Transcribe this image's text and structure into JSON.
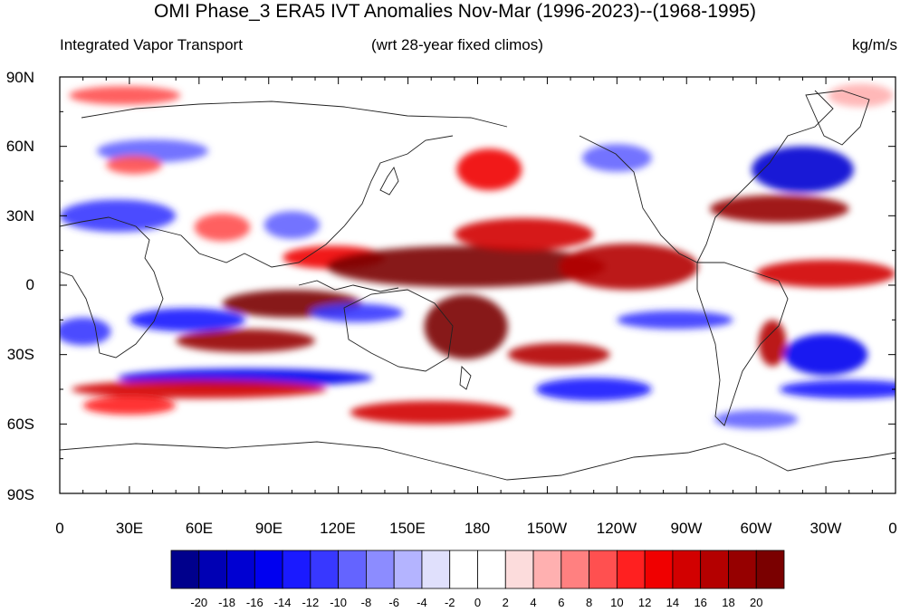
{
  "title": "OMI Phase_3 ERA5 IVT Anomalies Nov-Mar (1996-2023)--(1968-1995)",
  "left_label": "Integrated Vapor Transport",
  "center_label": "(wrt 28-year fixed climos)",
  "units": "kg/m/s",
  "lat_labels": [
    "90N",
    "60N",
    "30N",
    "0",
    "30S",
    "60S",
    "90S"
  ],
  "lon_labels": [
    "0",
    "30E",
    "60E",
    "90E",
    "120E",
    "150E",
    "180",
    "150W",
    "120W",
    "90W",
    "60W",
    "30W",
    "0"
  ],
  "colorbar": {
    "levels": [
      "-20",
      "-18",
      "-16",
      "-14",
      "-12",
      "-10",
      "-8",
      "-6",
      "-4",
      "-2",
      "0",
      "2",
      "4",
      "6",
      "8",
      "10",
      "12",
      "14",
      "16",
      "18",
      "20"
    ],
    "colors": [
      "#00008c",
      "#0000b4",
      "#0000d2",
      "#0000f0",
      "#1a1aff",
      "#3838ff",
      "#6464ff",
      "#8c8cff",
      "#b4b4ff",
      "#e0e0fc",
      "#ffffff",
      "#ffffff",
      "#fcdcdc",
      "#ffb0b0",
      "#ff8080",
      "#ff5050",
      "#ff2020",
      "#f00000",
      "#d20000",
      "#b40000",
      "#960000",
      "#7a0000"
    ]
  },
  "map": {
    "lat_range": [
      -90,
      90
    ],
    "lon_range": [
      0,
      360
    ],
    "anomaly_regions": [
      {
        "lon": 28,
        "lat": 82,
        "rx": 24,
        "ry": 4,
        "level": 8
      },
      {
        "lon": 345,
        "lat": 82,
        "rx": 14,
        "ry": 5,
        "level": 5
      },
      {
        "lon": 40,
        "lat": 58,
        "rx": 24,
        "ry": 5,
        "level": -9
      },
      {
        "lon": 32,
        "lat": 52,
        "rx": 12,
        "ry": 4,
        "level": 8
      },
      {
        "lon": 25,
        "lat": 30,
        "rx": 25,
        "ry": 7,
        "level": -12
      },
      {
        "lon": 70,
        "lat": 25,
        "rx": 12,
        "ry": 6,
        "level": 9
      },
      {
        "lon": 118,
        "lat": 12,
        "rx": 22,
        "ry": 5,
        "level": 12
      },
      {
        "lon": 100,
        "lat": 26,
        "rx": 12,
        "ry": 6,
        "level": -10
      },
      {
        "lon": 175,
        "lat": 8,
        "rx": 60,
        "ry": 9,
        "level": 20
      },
      {
        "lon": 200,
        "lat": 22,
        "rx": 30,
        "ry": 7,
        "level": 14
      },
      {
        "lon": 185,
        "lat": 50,
        "rx": 14,
        "ry": 9,
        "level": 12
      },
      {
        "lon": 175,
        "lat": -18,
        "rx": 18,
        "ry": 14,
        "level": 20
      },
      {
        "lon": 100,
        "lat": -8,
        "rx": 30,
        "ry": 6,
        "level": 20
      },
      {
        "lon": 80,
        "lat": -24,
        "rx": 30,
        "ry": 5,
        "level": 18
      },
      {
        "lon": 55,
        "lat": -15,
        "rx": 25,
        "ry": 5,
        "level": -14
      },
      {
        "lon": 128,
        "lat": -12,
        "rx": 20,
        "ry": 4,
        "level": -12
      },
      {
        "lon": 80,
        "lat": -40,
        "rx": 55,
        "ry": 4,
        "level": -16
      },
      {
        "lon": 60,
        "lat": -45,
        "rx": 55,
        "ry": 4,
        "level": 14
      },
      {
        "lon": 245,
        "lat": 8,
        "rx": 30,
        "ry": 10,
        "level": 16
      },
      {
        "lon": 265,
        "lat": -15,
        "rx": 25,
        "ry": 4,
        "level": -12
      },
      {
        "lon": 215,
        "lat": -30,
        "rx": 22,
        "ry": 5,
        "level": 16
      },
      {
        "lon": 230,
        "lat": -45,
        "rx": 25,
        "ry": 5,
        "level": -14
      },
      {
        "lon": 160,
        "lat": -55,
        "rx": 35,
        "ry": 5,
        "level": 14
      },
      {
        "lon": 320,
        "lat": 50,
        "rx": 22,
        "ry": 10,
        "level": -18
      },
      {
        "lon": 310,
        "lat": 33,
        "rx": 30,
        "ry": 6,
        "level": 18
      },
      {
        "lon": 330,
        "lat": 5,
        "rx": 30,
        "ry": 6,
        "level": 14
      },
      {
        "lon": 307,
        "lat": -25,
        "rx": 6,
        "ry": 10,
        "level": 16
      },
      {
        "lon": 330,
        "lat": -30,
        "rx": 18,
        "ry": 9,
        "level": -16
      },
      {
        "lon": 340,
        "lat": -45,
        "rx": 30,
        "ry": 4,
        "level": -14
      },
      {
        "lon": 300,
        "lat": -58,
        "rx": 18,
        "ry": 4,
        "level": -10
      },
      {
        "lon": 30,
        "lat": -52,
        "rx": 20,
        "ry": 4,
        "level": 10
      },
      {
        "lon": 240,
        "lat": 55,
        "rx": 15,
        "ry": 6,
        "level": -10
      },
      {
        "lon": 10,
        "lat": -20,
        "rx": 12,
        "ry": 6,
        "level": -12
      }
    ]
  }
}
